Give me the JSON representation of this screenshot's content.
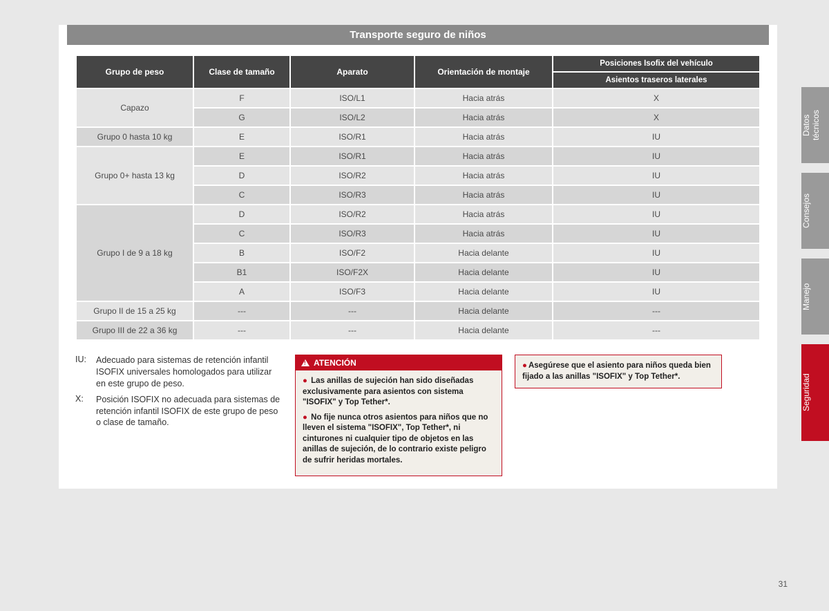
{
  "title": "Transporte seguro de niños",
  "page_number": "31",
  "tabs": [
    {
      "label": "Datos técnicos",
      "cls": "grey",
      "h": 110
    },
    {
      "label": "Consejos",
      "cls": "grey",
      "h": 110
    },
    {
      "label": "Manejo",
      "cls": "grey",
      "h": 110
    },
    {
      "label": "Seguridad",
      "cls": "red",
      "h": 140
    }
  ],
  "columns": {
    "c1": "Grupo de peso",
    "c2": "Clase de tamaño",
    "c3": "Aparato",
    "c4": "Orientación de montaje",
    "c5_top": "Posiciones Isofix del vehículo",
    "c5_sub": "Asientos traseros laterales"
  },
  "row_colors": {
    "light": "#e4e4e4",
    "dark": "#d6d6d6"
  },
  "groups": [
    {
      "label": "Capazo",
      "rows": [
        {
          "size": "F",
          "dev": "ISO/L1",
          "orient": "Hacia atrás",
          "pos": "X",
          "shade": "light"
        },
        {
          "size": "G",
          "dev": "ISO/L2",
          "orient": "Hacia atrás",
          "pos": "X",
          "shade": "dark"
        }
      ],
      "gshade": "light"
    },
    {
      "label": "Grupo 0 hasta 10 kg",
      "rows": [
        {
          "size": "E",
          "dev": "ISO/R1",
          "orient": "Hacia atrás",
          "pos": "IU",
          "shade": "light"
        }
      ],
      "gshade": "dark"
    },
    {
      "label": "Grupo 0+ hasta 13 kg",
      "rows": [
        {
          "size": "E",
          "dev": "ISO/R1",
          "orient": "Hacia atrás",
          "pos": "IU",
          "shade": "dark"
        },
        {
          "size": "D",
          "dev": "ISO/R2",
          "orient": "Hacia atrás",
          "pos": "IU",
          "shade": "light"
        },
        {
          "size": "C",
          "dev": "ISO/R3",
          "orient": "Hacia atrás",
          "pos": "IU",
          "shade": "dark"
        }
      ],
      "gshade": "light"
    },
    {
      "label": "Grupo I de 9 a 18 kg",
      "rows": [
        {
          "size": "D",
          "dev": "ISO/R2",
          "orient": "Hacia atrás",
          "pos": "IU",
          "shade": "light"
        },
        {
          "size": "C",
          "dev": "ISO/R3",
          "orient": "Hacia atrás",
          "pos": "IU",
          "shade": "dark"
        },
        {
          "size": "B",
          "dev": "ISO/F2",
          "orient": "Hacia delante",
          "pos": "IU",
          "shade": "light"
        },
        {
          "size": "B1",
          "dev": "ISO/F2X",
          "orient": "Hacia delante",
          "pos": "IU",
          "shade": "dark"
        },
        {
          "size": "A",
          "dev": "ISO/F3",
          "orient": "Hacia delante",
          "pos": "IU",
          "shade": "light"
        }
      ],
      "gshade": "dark"
    },
    {
      "label": "Grupo II de 15 a 25 kg",
      "rows": [
        {
          "size": "---",
          "dev": "---",
          "orient": "Hacia delante",
          "pos": "---",
          "shade": "dark"
        }
      ],
      "gshade": "light"
    },
    {
      "label": "Grupo III de 22 a 36 kg",
      "rows": [
        {
          "size": "---",
          "dev": "---",
          "orient": "Hacia delante",
          "pos": "---",
          "shade": "light"
        }
      ],
      "gshade": "dark"
    }
  ],
  "defs": [
    {
      "key": "IU:",
      "txt": "Adecuado para sistemas de retención infantil ISOFIX universales homologados para utilizar en este grupo de peso."
    },
    {
      "key": "X:",
      "txt": "Posición ISOFIX no adecuada para sistemas de retención infantil ISOFIX de este grupo de peso o clase de tamaño."
    }
  ],
  "warning": {
    "heading": "ATENCIÓN",
    "items": [
      "Las anillas de sujeción han sido diseñadas exclusivamente para asientos con sistema \"ISOFIX\" y Top Tether*.",
      "No fije nunca otros asientos para niños que no lleven el sistema \"ISOFIX\", Top Tether*, ni cinturones ni cualquier tipo de objetos en las anillas de sujeción, de lo contrario existe peligro de sufrir heridas mortales."
    ]
  },
  "info": "Asegúrese que el asiento para niños queda bien fijado a las anillas \"ISOFIX\" y Top Tether*."
}
